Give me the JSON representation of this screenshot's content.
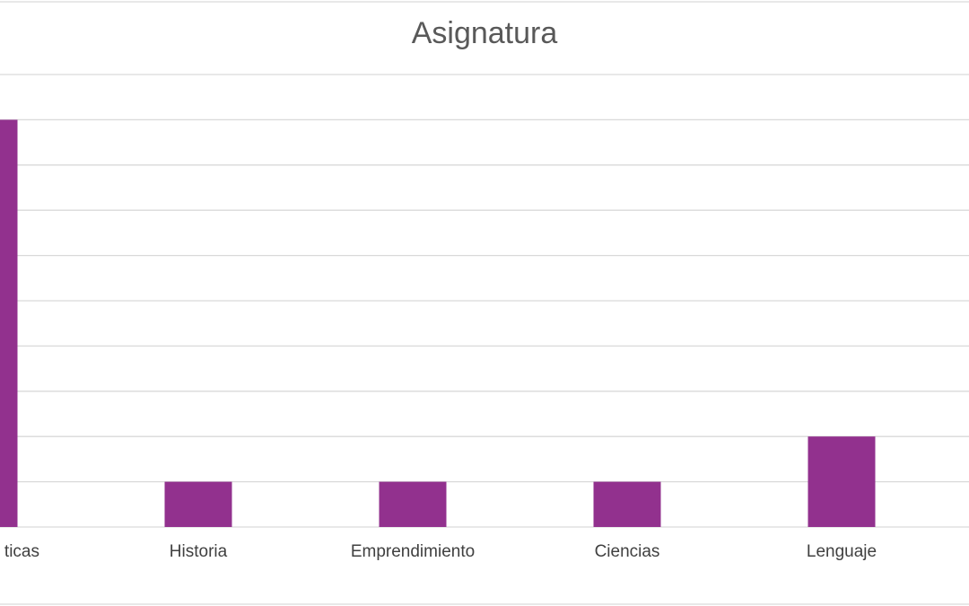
{
  "chart_data": {
    "type": "bar",
    "title": "Asignatura",
    "categories": [
      "Matemáticas",
      "Historia",
      "Emprendimiento",
      "Ciencias",
      "Lenguaje"
    ],
    "visible_category_text": [
      "ticas",
      "Historia",
      "Emprendimiento",
      "Ciencias",
      "Lenguaje"
    ],
    "series": [
      {
        "values": [
          9,
          1,
          1,
          1,
          2
        ]
      }
    ],
    "ylim": [
      0,
      10
    ],
    "grid": true,
    "legend": "none",
    "bar_color": "#92318E",
    "grid_color": "#D9D9D9"
  }
}
